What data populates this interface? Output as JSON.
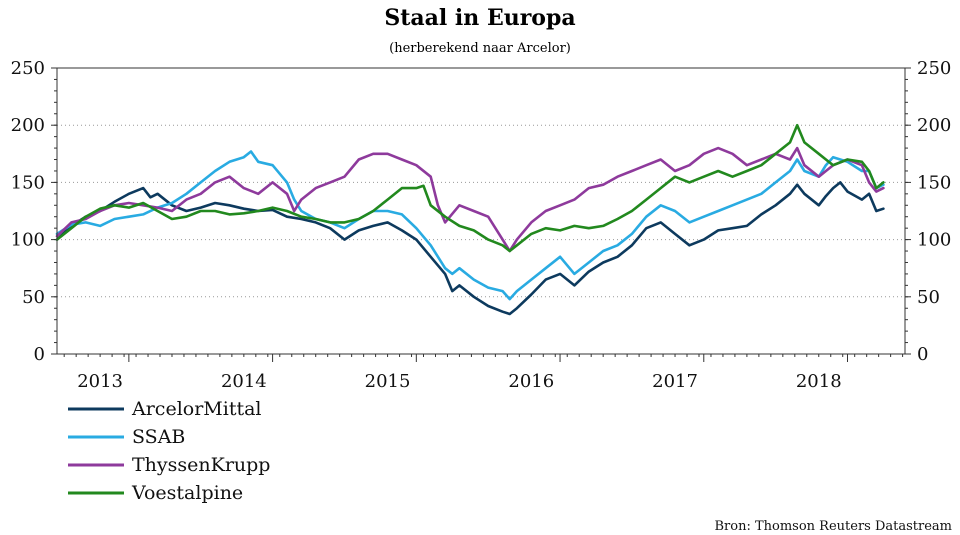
{
  "chart_data": {
    "type": "line",
    "title": "Staal in Europa",
    "subtitle": "(herberekend naar Arcelor)",
    "source": "Bron: Thomson Reuters Datastream",
    "ylim": [
      0,
      250
    ],
    "yticks": [
      0,
      50,
      100,
      150,
      200,
      250
    ],
    "ytick_labels": [
      "0",
      "50",
      "100",
      "150",
      "200",
      "250"
    ],
    "xlim": [
      2012.7,
      2018.6
    ],
    "x_labels": [
      {
        "label": "2013",
        "x": 2013.0
      },
      {
        "label": "2014",
        "x": 2014.0
      },
      {
        "label": "2015",
        "x": 2015.0
      },
      {
        "label": "2016",
        "x": 2016.0
      },
      {
        "label": "2017",
        "x": 2017.0
      },
      {
        "label": "2018",
        "x": 2018.0
      }
    ],
    "year_ticks": [
      2013.2,
      2014.2,
      2015.2,
      2016.2,
      2017.2,
      2018.2
    ],
    "grid": "horizontal-dotted",
    "legend_position": "bottom-left",
    "series": [
      {
        "name": "ArcelorMittal",
        "color": "#0d3a5e",
        "points": [
          [
            2012.7,
            100
          ],
          [
            2012.8,
            112
          ],
          [
            2012.9,
            120
          ],
          [
            2013.0,
            125
          ],
          [
            2013.1,
            133
          ],
          [
            2013.2,
            140
          ],
          [
            2013.3,
            145
          ],
          [
            2013.35,
            137
          ],
          [
            2013.4,
            140
          ],
          [
            2013.5,
            130
          ],
          [
            2013.6,
            125
          ],
          [
            2013.7,
            128
          ],
          [
            2013.8,
            132
          ],
          [
            2013.9,
            130
          ],
          [
            2014.0,
            127
          ],
          [
            2014.1,
            125
          ],
          [
            2014.2,
            126
          ],
          [
            2014.3,
            120
          ],
          [
            2014.4,
            118
          ],
          [
            2014.5,
            115
          ],
          [
            2014.6,
            110
          ],
          [
            2014.7,
            100
          ],
          [
            2014.8,
            108
          ],
          [
            2014.9,
            112
          ],
          [
            2015.0,
            115
          ],
          [
            2015.1,
            108
          ],
          [
            2015.2,
            100
          ],
          [
            2015.3,
            85
          ],
          [
            2015.4,
            70
          ],
          [
            2015.45,
            55
          ],
          [
            2015.5,
            60
          ],
          [
            2015.6,
            50
          ],
          [
            2015.7,
            42
          ],
          [
            2015.8,
            37
          ],
          [
            2015.85,
            35
          ],
          [
            2015.9,
            40
          ],
          [
            2016.0,
            52
          ],
          [
            2016.1,
            65
          ],
          [
            2016.2,
            70
          ],
          [
            2016.3,
            60
          ],
          [
            2016.4,
            72
          ],
          [
            2016.5,
            80
          ],
          [
            2016.6,
            85
          ],
          [
            2016.7,
            95
          ],
          [
            2016.8,
            110
          ],
          [
            2016.9,
            115
          ],
          [
            2017.0,
            105
          ],
          [
            2017.1,
            95
          ],
          [
            2017.2,
            100
          ],
          [
            2017.3,
            108
          ],
          [
            2017.4,
            110
          ],
          [
            2017.5,
            112
          ],
          [
            2017.6,
            122
          ],
          [
            2017.7,
            130
          ],
          [
            2017.8,
            140
          ],
          [
            2017.85,
            148
          ],
          [
            2017.9,
            140
          ],
          [
            2018.0,
            130
          ],
          [
            2018.05,
            138
          ],
          [
            2018.1,
            145
          ],
          [
            2018.15,
            150
          ],
          [
            2018.2,
            142
          ],
          [
            2018.3,
            135
          ],
          [
            2018.35,
            140
          ],
          [
            2018.4,
            125
          ],
          [
            2018.45,
            127
          ]
        ]
      },
      {
        "name": "SSAB",
        "color": "#29abe2",
        "points": [
          [
            2012.7,
            105
          ],
          [
            2012.8,
            113
          ],
          [
            2012.9,
            115
          ],
          [
            2013.0,
            112
          ],
          [
            2013.1,
            118
          ],
          [
            2013.2,
            120
          ],
          [
            2013.3,
            122
          ],
          [
            2013.4,
            128
          ],
          [
            2013.5,
            132
          ],
          [
            2013.6,
            140
          ],
          [
            2013.7,
            150
          ],
          [
            2013.8,
            160
          ],
          [
            2013.9,
            168
          ],
          [
            2014.0,
            172
          ],
          [
            2014.05,
            177
          ],
          [
            2014.1,
            168
          ],
          [
            2014.2,
            165
          ],
          [
            2014.3,
            150
          ],
          [
            2014.35,
            135
          ],
          [
            2014.4,
            125
          ],
          [
            2014.5,
            118
          ],
          [
            2014.6,
            115
          ],
          [
            2014.7,
            110
          ],
          [
            2014.8,
            118
          ],
          [
            2014.9,
            125
          ],
          [
            2015.0,
            125
          ],
          [
            2015.1,
            122
          ],
          [
            2015.2,
            110
          ],
          [
            2015.3,
            95
          ],
          [
            2015.4,
            75
          ],
          [
            2015.45,
            70
          ],
          [
            2015.5,
            75
          ],
          [
            2015.6,
            65
          ],
          [
            2015.7,
            58
          ],
          [
            2015.8,
            55
          ],
          [
            2015.85,
            48
          ],
          [
            2015.9,
            55
          ],
          [
            2016.0,
            65
          ],
          [
            2016.1,
            75
          ],
          [
            2016.2,
            85
          ],
          [
            2016.3,
            70
          ],
          [
            2016.4,
            80
          ],
          [
            2016.5,
            90
          ],
          [
            2016.6,
            95
          ],
          [
            2016.7,
            105
          ],
          [
            2016.8,
            120
          ],
          [
            2016.9,
            130
          ],
          [
            2017.0,
            125
          ],
          [
            2017.1,
            115
          ],
          [
            2017.2,
            120
          ],
          [
            2017.3,
            125
          ],
          [
            2017.4,
            130
          ],
          [
            2017.5,
            135
          ],
          [
            2017.6,
            140
          ],
          [
            2017.7,
            150
          ],
          [
            2017.8,
            160
          ],
          [
            2017.85,
            170
          ],
          [
            2017.9,
            160
          ],
          [
            2018.0,
            155
          ],
          [
            2018.05,
            165
          ],
          [
            2018.1,
            172
          ],
          [
            2018.2,
            168
          ],
          [
            2018.3,
            160
          ],
          [
            2018.35,
            160
          ],
          [
            2018.4,
            145
          ],
          [
            2018.45,
            148
          ]
        ]
      },
      {
        "name": "ThyssenKrupp",
        "color": "#8e3a9c",
        "points": [
          [
            2012.7,
            103
          ],
          [
            2012.8,
            115
          ],
          [
            2012.9,
            118
          ],
          [
            2013.0,
            125
          ],
          [
            2013.1,
            130
          ],
          [
            2013.2,
            132
          ],
          [
            2013.3,
            130
          ],
          [
            2013.4,
            128
          ],
          [
            2013.5,
            125
          ],
          [
            2013.6,
            135
          ],
          [
            2013.7,
            140
          ],
          [
            2013.8,
            150
          ],
          [
            2013.9,
            155
          ],
          [
            2014.0,
            145
          ],
          [
            2014.1,
            140
          ],
          [
            2014.2,
            150
          ],
          [
            2014.3,
            140
          ],
          [
            2014.35,
            125
          ],
          [
            2014.4,
            135
          ],
          [
            2014.5,
            145
          ],
          [
            2014.6,
            150
          ],
          [
            2014.7,
            155
          ],
          [
            2014.8,
            170
          ],
          [
            2014.9,
            175
          ],
          [
            2015.0,
            175
          ],
          [
            2015.1,
            170
          ],
          [
            2015.2,
            165
          ],
          [
            2015.3,
            155
          ],
          [
            2015.35,
            130
          ],
          [
            2015.4,
            115
          ],
          [
            2015.5,
            130
          ],
          [
            2015.6,
            125
          ],
          [
            2015.7,
            120
          ],
          [
            2015.8,
            100
          ],
          [
            2015.85,
            90
          ],
          [
            2015.9,
            100
          ],
          [
            2016.0,
            115
          ],
          [
            2016.1,
            125
          ],
          [
            2016.2,
            130
          ],
          [
            2016.3,
            135
          ],
          [
            2016.4,
            145
          ],
          [
            2016.5,
            148
          ],
          [
            2016.6,
            155
          ],
          [
            2016.7,
            160
          ],
          [
            2016.8,
            165
          ],
          [
            2016.9,
            170
          ],
          [
            2017.0,
            160
          ],
          [
            2017.1,
            165
          ],
          [
            2017.2,
            175
          ],
          [
            2017.3,
            180
          ],
          [
            2017.4,
            175
          ],
          [
            2017.5,
            165
          ],
          [
            2017.6,
            170
          ],
          [
            2017.7,
            175
          ],
          [
            2017.8,
            170
          ],
          [
            2017.85,
            180
          ],
          [
            2017.9,
            165
          ],
          [
            2018.0,
            155
          ],
          [
            2018.05,
            160
          ],
          [
            2018.1,
            165
          ],
          [
            2018.2,
            170
          ],
          [
            2018.3,
            165
          ],
          [
            2018.35,
            150
          ],
          [
            2018.4,
            142
          ],
          [
            2018.45,
            145
          ]
        ]
      },
      {
        "name": "Voestalpine",
        "color": "#22891e",
        "points": [
          [
            2012.7,
            100
          ],
          [
            2012.8,
            110
          ],
          [
            2012.9,
            120
          ],
          [
            2013.0,
            127
          ],
          [
            2013.1,
            130
          ],
          [
            2013.2,
            128
          ],
          [
            2013.3,
            132
          ],
          [
            2013.4,
            125
          ],
          [
            2013.5,
            118
          ],
          [
            2013.6,
            120
          ],
          [
            2013.7,
            125
          ],
          [
            2013.8,
            125
          ],
          [
            2013.9,
            122
          ],
          [
            2014.0,
            123
          ],
          [
            2014.1,
            125
          ],
          [
            2014.2,
            128
          ],
          [
            2014.3,
            125
          ],
          [
            2014.4,
            120
          ],
          [
            2014.5,
            118
          ],
          [
            2014.6,
            115
          ],
          [
            2014.7,
            115
          ],
          [
            2014.8,
            118
          ],
          [
            2014.9,
            125
          ],
          [
            2015.0,
            135
          ],
          [
            2015.1,
            145
          ],
          [
            2015.2,
            145
          ],
          [
            2015.25,
            147
          ],
          [
            2015.3,
            130
          ],
          [
            2015.4,
            120
          ],
          [
            2015.5,
            112
          ],
          [
            2015.6,
            108
          ],
          [
            2015.7,
            100
          ],
          [
            2015.8,
            95
          ],
          [
            2015.85,
            90
          ],
          [
            2015.9,
            95
          ],
          [
            2016.0,
            105
          ],
          [
            2016.1,
            110
          ],
          [
            2016.2,
            108
          ],
          [
            2016.3,
            112
          ],
          [
            2016.4,
            110
          ],
          [
            2016.5,
            112
          ],
          [
            2016.6,
            118
          ],
          [
            2016.7,
            125
          ],
          [
            2016.8,
            135
          ],
          [
            2016.9,
            145
          ],
          [
            2017.0,
            155
          ],
          [
            2017.1,
            150
          ],
          [
            2017.2,
            155
          ],
          [
            2017.3,
            160
          ],
          [
            2017.4,
            155
          ],
          [
            2017.5,
            160
          ],
          [
            2017.6,
            165
          ],
          [
            2017.7,
            175
          ],
          [
            2017.8,
            185
          ],
          [
            2017.85,
            200
          ],
          [
            2017.9,
            185
          ],
          [
            2018.0,
            175
          ],
          [
            2018.05,
            170
          ],
          [
            2018.1,
            165
          ],
          [
            2018.2,
            170
          ],
          [
            2018.3,
            168
          ],
          [
            2018.35,
            160
          ],
          [
            2018.4,
            145
          ],
          [
            2018.45,
            150
          ]
        ]
      }
    ]
  }
}
